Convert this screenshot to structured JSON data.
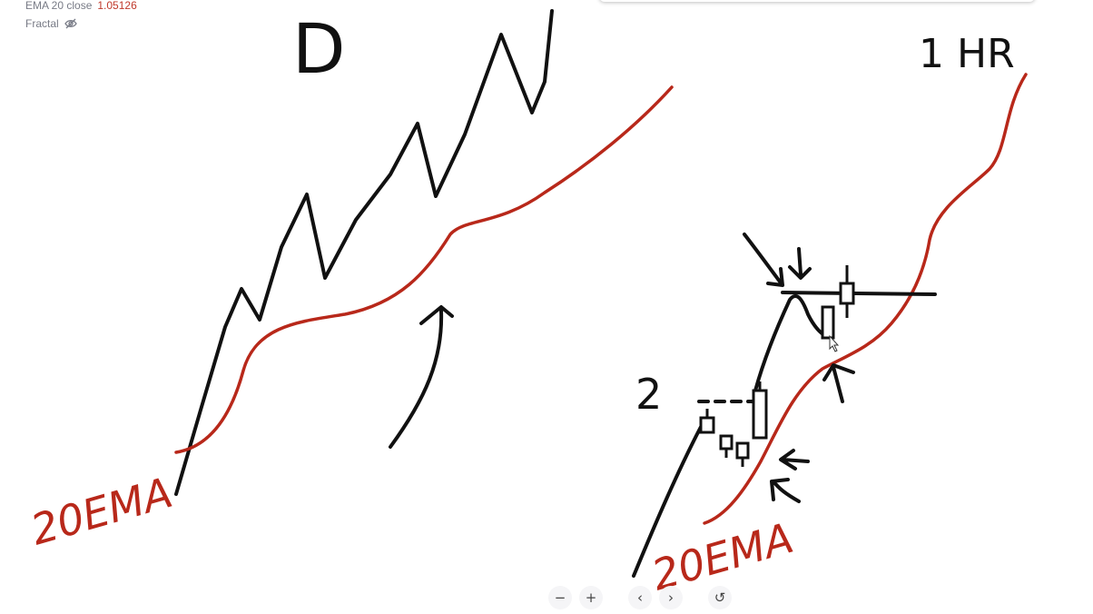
{
  "legend": {
    "ema_label": "EMA 20 close",
    "ema_value": "1.05126",
    "fractal_label": "Fractal"
  },
  "drawing": {
    "daily_label": "D",
    "hourly_label": "1 HR",
    "left_ema_label": "20EMA",
    "right_ema_label": "20EMA",
    "count_label": "2"
  },
  "toolbar": {
    "zoom_out": "−",
    "zoom_in": "+",
    "scroll_left": "‹",
    "scroll_right": "›",
    "reset": "↺"
  },
  "colors": {
    "ink": "#111111",
    "ema_ink": "#b8281a",
    "legend_value": "#c0392b"
  },
  "icons": {
    "fractal_visibility": "eye-off-icon",
    "zoom_out": "minus-icon",
    "zoom_in": "plus-icon",
    "scroll_left": "chevron-left-icon",
    "scroll_right": "chevron-right-icon",
    "reset": "reset-icon"
  }
}
